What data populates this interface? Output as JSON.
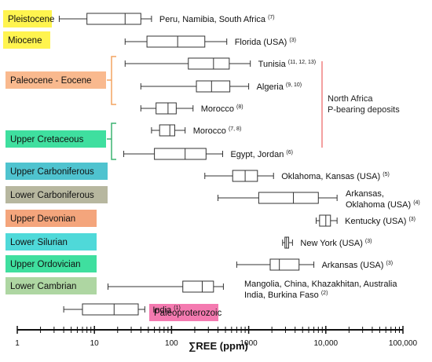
{
  "chart_data": {
    "type": "box",
    "xlabel": "∑REE (ppm)",
    "xscale": "log",
    "xlim": [
      1,
      100000
    ],
    "x_ticks": [
      "1",
      "10",
      "100",
      "1000",
      "10,000",
      "100,000"
    ],
    "series": [
      {
        "label": "Peru, Namibia, South Africa",
        "ref": "(7)",
        "period": "Pleistocene",
        "period_color": "#fff44f",
        "min": 3.5,
        "q1": 8,
        "median": 25,
        "q3": 40,
        "max": 55
      },
      {
        "label": "Florida (USA)",
        "ref": "(3)",
        "period": "Miocene",
        "period_color": "#fff44f",
        "min": 25,
        "q1": 48,
        "median": 120,
        "q3": 270,
        "max": 520
      },
      {
        "label": "Tunisia",
        "ref": "(11, 12, 13)",
        "period": "Paleocene - Eocene",
        "period_color": "#f9b98e",
        "min": 25,
        "q1": 165,
        "median": 350,
        "q3": 560,
        "max": 1050
      },
      {
        "label": "Algeria",
        "ref": "(9, 10)",
        "period": "",
        "period_color": "",
        "min": 40,
        "q1": 210,
        "median": 330,
        "q3": 570,
        "max": 1000
      },
      {
        "label": "Morocco",
        "ref": "(8)",
        "period": "",
        "period_color": "",
        "min": 40,
        "q1": 63,
        "median": 90,
        "q3": 115,
        "max": 190
      },
      {
        "label": "Morocco",
        "ref": "(7, 8)",
        "period": "Upper Cretaceous",
        "period_color": "#3fdf9f",
        "min": 55,
        "q1": 70,
        "median": 95,
        "q3": 110,
        "max": 150
      },
      {
        "label": "Egypt, Jordan",
        "ref": "(6)",
        "period": "",
        "period_color": "",
        "min": 24,
        "q1": 60,
        "median": 150,
        "q3": 280,
        "max": 460
      },
      {
        "label": "Oklahoma, Kansas (USA)",
        "ref": "(5)",
        "period": "Upper Carboniferous",
        "period_color": "#4fc3cf",
        "min": 270,
        "q1": 620,
        "median": 900,
        "q3": 1300,
        "max": 2100
      },
      {
        "label": "Arkansas, Oklahoma (USA)",
        "ref": "(4)",
        "period": "Lower Carboniferous",
        "period_color": "#b7b79f",
        "min": 400,
        "q1": 1350,
        "median": 3800,
        "q3": 8000,
        "max": 14000
      },
      {
        "label": "Kentucky (USA)",
        "ref": "(3)",
        "period": "Upper Devonian",
        "period_color": "#f4a57c",
        "min": 7500,
        "q1": 8300,
        "median": 10000,
        "q3": 11500,
        "max": 14000
      },
      {
        "label": "New York (USA)",
        "ref": "(3)",
        "period": "Lower Silurian",
        "period_color": "#4fd9d9",
        "min": 2750,
        "q1": 2950,
        "median": 3100,
        "q3": 3300,
        "max": 3700
      },
      {
        "label": "Arkansas (USA)",
        "ref": "(3)",
        "period": "Upper Ordovician",
        "period_color": "#3fdf9f",
        "min": 700,
        "q1": 1900,
        "median": 2500,
        "q3": 4500,
        "max": 7000
      },
      {
        "label": "Mangolia, China, Khazakhitan,  Australia, India, Burkina Faso",
        "ref": "(2)",
        "period": "Lower Cambrian",
        "period_color": "#aed6a2",
        "min": 15,
        "q1": 140,
        "median": 250,
        "q3": 350,
        "max": 470
      },
      {
        "label": "India",
        "ref": "(1)",
        "period": "Paleoproterozoic",
        "period_color": "#f47ab0",
        "min": 4,
        "q1": 7,
        "median": 18,
        "q3": 37,
        "max": 45
      }
    ],
    "bracket_label": "North Africa P-bearing deposits",
    "bracket_color": "#f08080"
  }
}
